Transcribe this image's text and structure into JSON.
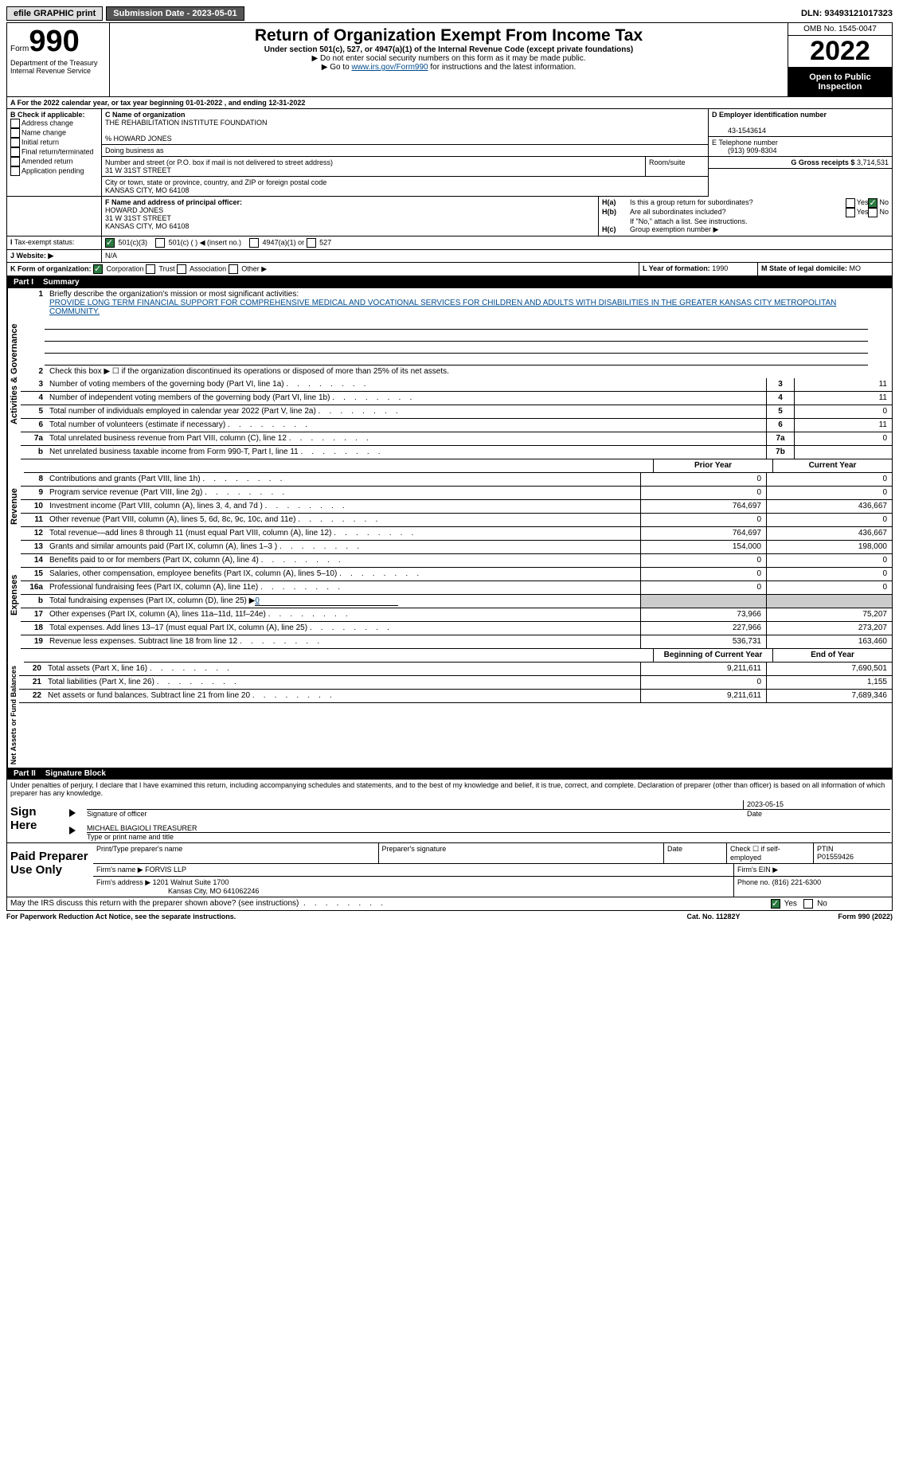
{
  "top": {
    "efile": "efile GRAPHIC print",
    "submission_label": "Submission Date - 2023-05-01",
    "dln": "DLN: 93493121017323"
  },
  "header": {
    "form": "Form",
    "number": "990",
    "dept": "Department of the Treasury",
    "irs": "Internal Revenue Service",
    "title": "Return of Organization Exempt From Income Tax",
    "subtitle": "Under section 501(c), 527, or 4947(a)(1) of the Internal Revenue Code (except private foundations)",
    "note1": "▶ Do not enter social security numbers on this form as it may be made public.",
    "note2_pre": "▶ Go to ",
    "note2_link": "www.irs.gov/Form990",
    "note2_post": " for instructions and the latest information.",
    "omb": "OMB No. 1545-0047",
    "year": "2022",
    "open": "Open to Public Inspection"
  },
  "lineA": "For the 2022 calendar year, or tax year beginning 01-01-2022    , and ending 12-31-2022",
  "boxB": {
    "label": "B Check if applicable:",
    "opts": [
      "Address change",
      "Name change",
      "Initial return",
      "Final return/terminated",
      "Amended return",
      "Application pending"
    ]
  },
  "boxC": {
    "name_label": "C Name of organization",
    "name": "THE REHABILITATION INSTITUTE FOUNDATION",
    "care_of": "% HOWARD JONES",
    "dba_label": "Doing business as",
    "addr_label": "Number and street (or P.O. box if mail is not delivered to street address)",
    "room": "Room/suite",
    "addr": "31 W 31ST STREET",
    "city_label": "City or town, state or province, country, and ZIP or foreign postal code",
    "city": "KANSAS CITY, MO  64108"
  },
  "boxD": {
    "label": "D Employer identification number",
    "val": "43-1543614"
  },
  "boxE": {
    "label": "E Telephone number",
    "val": "(913) 909-8304"
  },
  "boxG": {
    "label": "G Gross receipts $",
    "val": "3,714,531"
  },
  "boxF": {
    "label": "F Name and address of principal officer:",
    "name": "HOWARD JONES",
    "addr1": "31 W 31ST STREET",
    "addr2": "KANSAS CITY, MO  64108"
  },
  "boxH": {
    "a": "Is this a group return for subordinates?",
    "b": "Are all subordinates included?",
    "note": "If \"No,\" attach a list. See instructions.",
    "c": "Group exemption number ▶",
    "yes": "Yes",
    "no": "No"
  },
  "taxI": {
    "label": "Tax-exempt status:",
    "o1": "501(c)(3)",
    "o2": "501(c) (  ) ◀ (insert no.)",
    "o3": "4947(a)(1) or",
    "o4": "527"
  },
  "taxJ": {
    "label": "Website: ▶",
    "val": "N/A"
  },
  "lineK": {
    "label": "K Form of organization:",
    "corp": "Corporation",
    "trust": "Trust",
    "assoc": "Association",
    "other": "Other ▶"
  },
  "lineL": {
    "label": "L Year of formation:",
    "val": "1990"
  },
  "lineM": {
    "label": "M State of legal domicile:",
    "val": "MO"
  },
  "part1": {
    "label": "Part I",
    "title": "Summary",
    "q1": "Briefly describe the organization's mission or most significant activities:",
    "mission": "PROVIDE LONG TERM FINANCIAL SUPPORT FOR COMPREHENSIVE MEDICAL AND VOCATIONAL SERVICES FOR CHILDREN AND ADULTS WITH DISABILITIES IN THE GREATER KANSAS CITY METROPOLITAN COMMUNITY.",
    "q2": "Check this box ▶ ☐ if the organization discontinued its operations or disposed of more than 25% of its net assets.",
    "rows_gov": [
      {
        "n": "3",
        "t": "Number of voting members of the governing body (Part VI, line 1a)",
        "b": "3",
        "v": "11"
      },
      {
        "n": "4",
        "t": "Number of independent voting members of the governing body (Part VI, line 1b)",
        "b": "4",
        "v": "11"
      },
      {
        "n": "5",
        "t": "Total number of individuals employed in calendar year 2022 (Part V, line 2a)",
        "b": "5",
        "v": "0"
      },
      {
        "n": "6",
        "t": "Total number of volunteers (estimate if necessary)",
        "b": "6",
        "v": "11"
      },
      {
        "n": "7a",
        "t": "Total unrelated business revenue from Part VIII, column (C), line 12",
        "b": "7a",
        "v": "0"
      },
      {
        "n": "b",
        "t": "Net unrelated business taxable income from Form 990-T, Part I, line 11",
        "b": "7b",
        "v": ""
      }
    ],
    "col_py": "Prior Year",
    "col_cy": "Current Year",
    "rows_rev": [
      {
        "n": "8",
        "t": "Contributions and grants (Part VIII, line 1h)",
        "py": "0",
        "cy": "0"
      },
      {
        "n": "9",
        "t": "Program service revenue (Part VIII, line 2g)",
        "py": "0",
        "cy": "0"
      },
      {
        "n": "10",
        "t": "Investment income (Part VIII, column (A), lines 3, 4, and 7d )",
        "py": "764,697",
        "cy": "436,667"
      },
      {
        "n": "11",
        "t": "Other revenue (Part VIII, column (A), lines 5, 6d, 8c, 9c, 10c, and 11e)",
        "py": "0",
        "cy": "0"
      },
      {
        "n": "12",
        "t": "Total revenue—add lines 8 through 11 (must equal Part VIII, column (A), line 12)",
        "py": "764,697",
        "cy": "436,667"
      }
    ],
    "rows_exp": [
      {
        "n": "13",
        "t": "Grants and similar amounts paid (Part IX, column (A), lines 1–3 )",
        "py": "154,000",
        "cy": "198,000"
      },
      {
        "n": "14",
        "t": "Benefits paid to or for members (Part IX, column (A), line 4)",
        "py": "0",
        "cy": "0"
      },
      {
        "n": "15",
        "t": "Salaries, other compensation, employee benefits (Part IX, column (A), lines 5–10)",
        "py": "0",
        "cy": "0"
      },
      {
        "n": "16a",
        "t": "Professional fundraising fees (Part IX, column (A), line 11e)",
        "py": "0",
        "cy": "0"
      }
    ],
    "row_b": {
      "n": "b",
      "t": "Total fundraising expenses (Part IX, column (D), line 25) ▶",
      "v": "0"
    },
    "rows_exp2": [
      {
        "n": "17",
        "t": "Other expenses (Part IX, column (A), lines 11a–11d, 11f–24e)",
        "py": "73,966",
        "cy": "75,207"
      },
      {
        "n": "18",
        "t": "Total expenses. Add lines 13–17 (must equal Part IX, column (A), line 25)",
        "py": "227,966",
        "cy": "273,207"
      },
      {
        "n": "19",
        "t": "Revenue less expenses. Subtract line 18 from line 12",
        "py": "536,731",
        "cy": "163,460"
      }
    ],
    "col_beg": "Beginning of Current Year",
    "col_end": "End of Year",
    "rows_net": [
      {
        "n": "20",
        "t": "Total assets (Part X, line 16)",
        "py": "9,211,611",
        "cy": "7,690,501"
      },
      {
        "n": "21",
        "t": "Total liabilities (Part X, line 26)",
        "py": "0",
        "cy": "1,155"
      },
      {
        "n": "22",
        "t": "Net assets or fund balances. Subtract line 21 from line 20",
        "py": "9,211,611",
        "cy": "7,689,346"
      }
    ],
    "vgov": "Activities & Governance",
    "vrev": "Revenue",
    "vexp": "Expenses",
    "vnet": "Net Assets or Fund Balances"
  },
  "part2": {
    "label": "Part II",
    "title": "Signature Block",
    "decl": "Under penalties of perjury, I declare that I have examined this return, including accompanying schedules and statements, and to the best of my knowledge and belief, it is true, correct, and complete. Declaration of preparer (other than officer) is based on all information of which preparer has any knowledge.",
    "sign_here": "Sign Here",
    "sig_officer": "Signature of officer",
    "date": "Date",
    "date_val": "2023-05-15",
    "name_title": "MICHAEL BIAGIOLI TREASURER",
    "type_name": "Type or print name and title",
    "paid": "Paid Preparer Use Only",
    "pname": "Print/Type preparer's name",
    "psig": "Preparer's signature",
    "check_self": "Check ☐ if self-employed",
    "ptin_l": "PTIN",
    "ptin": "P01559426",
    "firm_name_l": "Firm's name    ▶",
    "firm_name": "FORVIS LLP",
    "ein_l": "Firm's EIN ▶",
    "firm_addr_l": "Firm's address ▶",
    "firm_addr": "1201 Walnut Suite 1700",
    "firm_city": "Kansas City, MO  641062246",
    "phone_l": "Phone no.",
    "phone": "(816) 221-6300",
    "may_irs": "May the IRS discuss this return with the preparer shown above? (see instructions)"
  },
  "footer": {
    "pra": "For Paperwork Reduction Act Notice, see the separate instructions.",
    "cat": "Cat. No. 11282Y",
    "form": "Form 990 (2022)"
  }
}
